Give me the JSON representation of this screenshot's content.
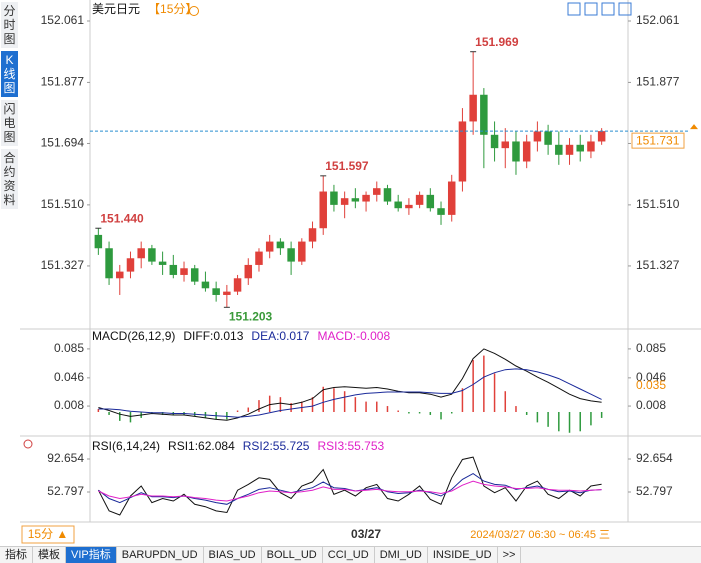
{
  "chart_data": [
    {
      "type": "candlestick",
      "title": "美元日元",
      "subtitle": "【15分】",
      "up_color": "#e0403a",
      "down_color": "#2e9a3e",
      "categories": [
        null,
        null,
        null,
        null,
        null,
        null,
        null,
        null,
        null,
        null,
        null,
        null,
        null,
        null,
        null,
        null,
        null,
        null,
        null,
        null,
        null,
        null,
        null,
        null,
        null,
        "03/27",
        null,
        null,
        null,
        null,
        null,
        null,
        null,
        null,
        null,
        null,
        null,
        null,
        null,
        null,
        null,
        null,
        null,
        null,
        null,
        null,
        null,
        null
      ],
      "ohlc": [
        [
          151.42,
          151.44,
          151.36,
          151.38
        ],
        [
          151.38,
          151.4,
          151.27,
          151.29
        ],
        [
          151.29,
          151.33,
          151.24,
          151.31
        ],
        [
          151.31,
          151.37,
          151.29,
          151.35
        ],
        [
          151.35,
          151.4,
          151.32,
          151.38
        ],
        [
          151.38,
          151.39,
          151.33,
          151.34
        ],
        [
          151.34,
          151.37,
          151.3,
          151.33
        ],
        [
          151.33,
          151.36,
          151.29,
          151.3
        ],
        [
          151.3,
          151.34,
          151.28,
          151.32
        ],
        [
          151.32,
          151.33,
          151.27,
          151.28
        ],
        [
          151.28,
          151.31,
          151.25,
          151.26
        ],
        [
          151.26,
          151.28,
          151.22,
          151.24
        ],
        [
          151.24,
          151.27,
          151.203,
          151.25
        ],
        [
          151.25,
          151.3,
          151.24,
          151.29
        ],
        [
          151.29,
          151.35,
          151.27,
          151.33
        ],
        [
          151.33,
          151.38,
          151.31,
          151.37
        ],
        [
          151.37,
          151.42,
          151.35,
          151.4
        ],
        [
          151.4,
          151.41,
          151.36,
          151.38
        ],
        [
          151.38,
          151.4,
          151.3,
          151.34
        ],
        [
          151.34,
          151.41,
          151.33,
          151.4
        ],
        [
          151.4,
          151.46,
          151.38,
          151.44
        ],
        [
          151.44,
          151.597,
          151.42,
          151.55
        ],
        [
          151.55,
          151.57,
          151.49,
          151.51
        ],
        [
          151.51,
          151.55,
          151.47,
          151.53
        ],
        [
          151.53,
          151.56,
          151.5,
          151.52
        ],
        [
          151.52,
          151.55,
          151.49,
          151.54
        ],
        [
          151.54,
          151.58,
          151.52,
          151.56
        ],
        [
          151.56,
          151.57,
          151.51,
          151.52
        ],
        [
          151.52,
          151.54,
          151.49,
          151.5
        ],
        [
          151.5,
          151.53,
          151.48,
          151.51
        ],
        [
          151.51,
          151.55,
          151.5,
          151.54
        ],
        [
          151.54,
          151.56,
          151.49,
          151.5
        ],
        [
          151.5,
          151.52,
          151.45,
          151.48
        ],
        [
          151.48,
          151.6,
          151.46,
          151.58
        ],
        [
          151.58,
          151.8,
          151.55,
          151.76
        ],
        [
          151.76,
          151.969,
          151.72,
          151.84
        ],
        [
          151.84,
          151.86,
          151.62,
          151.72
        ],
        [
          151.72,
          151.76,
          151.64,
          151.68
        ],
        [
          151.68,
          151.74,
          151.62,
          151.7
        ],
        [
          151.7,
          151.73,
          151.6,
          151.64
        ],
        [
          151.64,
          151.72,
          151.62,
          151.7
        ],
        [
          151.7,
          151.76,
          151.67,
          151.73
        ],
        [
          151.73,
          151.75,
          151.66,
          151.69
        ],
        [
          151.69,
          151.73,
          151.63,
          151.66
        ],
        [
          151.66,
          151.71,
          151.63,
          151.69
        ],
        [
          151.69,
          151.72,
          151.64,
          151.67
        ],
        [
          151.67,
          151.72,
          151.65,
          151.7
        ],
        [
          151.7,
          151.74,
          151.69,
          151.731
        ]
      ],
      "annotations": [
        {
          "label": "151.440",
          "value": 151.44,
          "color": "#d04040"
        },
        {
          "label": "151.203",
          "value": 151.203,
          "color": "#3a9a3a"
        },
        {
          "label": "151.597",
          "value": 151.597,
          "color": "#d04040"
        },
        {
          "label": "151.969",
          "value": 151.969,
          "color": "#d04040"
        }
      ],
      "last_price": 151.731,
      "ylim": [
        151.141,
        152.094
      ],
      "yticks": [
        152.061,
        151.877,
        151.694,
        {
          "value": 151.51,
          "label": "151.510"
        },
        151.327
      ]
    },
    {
      "type": "macd",
      "title": "MACD(26,12,9)",
      "cursor_value": 0.035,
      "up_color": "#e0403a",
      "down_color": "#2e9a3e",
      "series": [
        {
          "name": "DIFF:0.013",
          "color": "#111111",
          "style": "line",
          "values": [
            0.006,
            0.002,
            -0.003,
            -0.006,
            -0.004,
            -0.002,
            -0.003,
            -0.004,
            -0.004,
            -0.006,
            -0.008,
            -0.01,
            -0.011,
            -0.008,
            -0.003,
            0.004,
            0.01,
            0.012,
            0.01,
            0.013,
            0.018,
            0.03,
            0.033,
            0.034,
            0.033,
            0.032,
            0.033,
            0.031,
            0.028,
            0.026,
            0.026,
            0.024,
            0.02,
            0.024,
            0.045,
            0.072,
            0.085,
            0.079,
            0.071,
            0.062,
            0.055,
            0.047,
            0.04,
            0.032,
            0.024,
            0.018,
            0.015,
            0.013
          ]
        },
        {
          "name": "DEA:0.017",
          "color": "#1a2a9a",
          "style": "line",
          "values": [
            0.004,
            0.004,
            0.003,
            0.001,
            0.0,
            -0.001,
            -0.001,
            -0.002,
            -0.002,
            -0.003,
            -0.004,
            -0.005,
            -0.006,
            -0.007,
            -0.006,
            -0.004,
            -0.001,
            0.002,
            0.004,
            0.006,
            0.008,
            0.013,
            0.017,
            0.02,
            0.023,
            0.025,
            0.026,
            0.027,
            0.027,
            0.027,
            0.027,
            0.026,
            0.025,
            0.025,
            0.029,
            0.037,
            0.047,
            0.053,
            0.057,
            0.058,
            0.057,
            0.054,
            0.05,
            0.045,
            0.038,
            0.031,
            0.024,
            0.017
          ]
        },
        {
          "name": "MACD:-0.008",
          "color": "#e020c8",
          "style": "histogram",
          "values": [
            0.004,
            -0.004,
            -0.012,
            -0.014,
            -0.008,
            -0.002,
            -0.004,
            -0.004,
            -0.004,
            -0.006,
            -0.008,
            -0.01,
            -0.01,
            0.002,
            0.006,
            0.016,
            0.022,
            0.02,
            0.012,
            0.014,
            0.02,
            0.034,
            0.032,
            0.028,
            0.02,
            0.014,
            0.014,
            0.008,
            0.002,
            -0.002,
            -0.002,
            -0.004,
            -0.01,
            -0.002,
            0.032,
            0.07,
            0.076,
            0.052,
            0.028,
            0.008,
            -0.004,
            -0.014,
            -0.02,
            -0.026,
            -0.028,
            -0.026,
            -0.018,
            -0.008
          ]
        }
      ],
      "ylim": [
        -0.031,
        0.097
      ],
      "yticks": [
        0.085,
        0.046,
        0.008
      ]
    },
    {
      "type": "line",
      "title": "RSI(6,14,24)",
      "series": [
        {
          "name": "RSI1:62.084",
          "color": "#111111",
          "values": [
            55,
            30,
            25,
            48,
            60,
            40,
            45,
            42,
            50,
            38,
            35,
            30,
            28,
            55,
            62,
            70,
            68,
            52,
            45,
            60,
            65,
            80,
            50,
            55,
            48,
            58,
            62,
            45,
            42,
            50,
            60,
            44,
            38,
            70,
            92,
            95,
            60,
            52,
            58,
            42,
            60,
            66,
            50,
            45,
            55,
            48,
            60,
            62.084
          ]
        },
        {
          "name": "RSI2:55.725",
          "color": "#1a2a9a",
          "values": [
            55,
            45,
            40,
            46,
            52,
            47,
            47,
            46,
            48,
            45,
            43,
            40,
            38,
            45,
            50,
            56,
            58,
            55,
            52,
            55,
            58,
            65,
            58,
            57,
            54,
            56,
            58,
            53,
            51,
            52,
            55,
            52,
            48,
            56,
            68,
            75,
            66,
            62,
            61,
            56,
            58,
            60,
            56,
            53,
            54,
            52,
            55,
            55.725
          ]
        },
        {
          "name": "RSI3:55.753",
          "color": "#e020c8",
          "values": [
            54,
            48,
            45,
            47,
            50,
            48,
            48,
            47,
            48,
            46,
            45,
            43,
            42,
            45,
            48,
            52,
            54,
            53,
            52,
            53,
            55,
            59,
            56,
            56,
            54,
            55,
            56,
            54,
            53,
            53,
            54,
            53,
            51,
            54,
            61,
            66,
            62,
            60,
            59,
            57,
            57,
            58,
            56,
            55,
            55,
            54,
            55,
            55.753
          ]
        }
      ],
      "ylim": [
        19,
        115.6
      ],
      "yticks": [
        92.654,
        52.797
      ]
    }
  ],
  "ui": {
    "sidebar": [
      "分时图",
      "K线图",
      "闪电图",
      "合约资料"
    ],
    "active_side": 1,
    "period_button": "15分 ▲",
    "time_range": "2024/03/27 06:30 ~ 06:45 三",
    "tabs": [
      "指标",
      "模板",
      "VIP指标",
      "BARUPDN_UD",
      "BIAS_UD",
      "BOLL_UD",
      "CCI_UD",
      "DMI_UD",
      "INSIDE_UD",
      ">>"
    ],
    "active_tab": 2
  }
}
